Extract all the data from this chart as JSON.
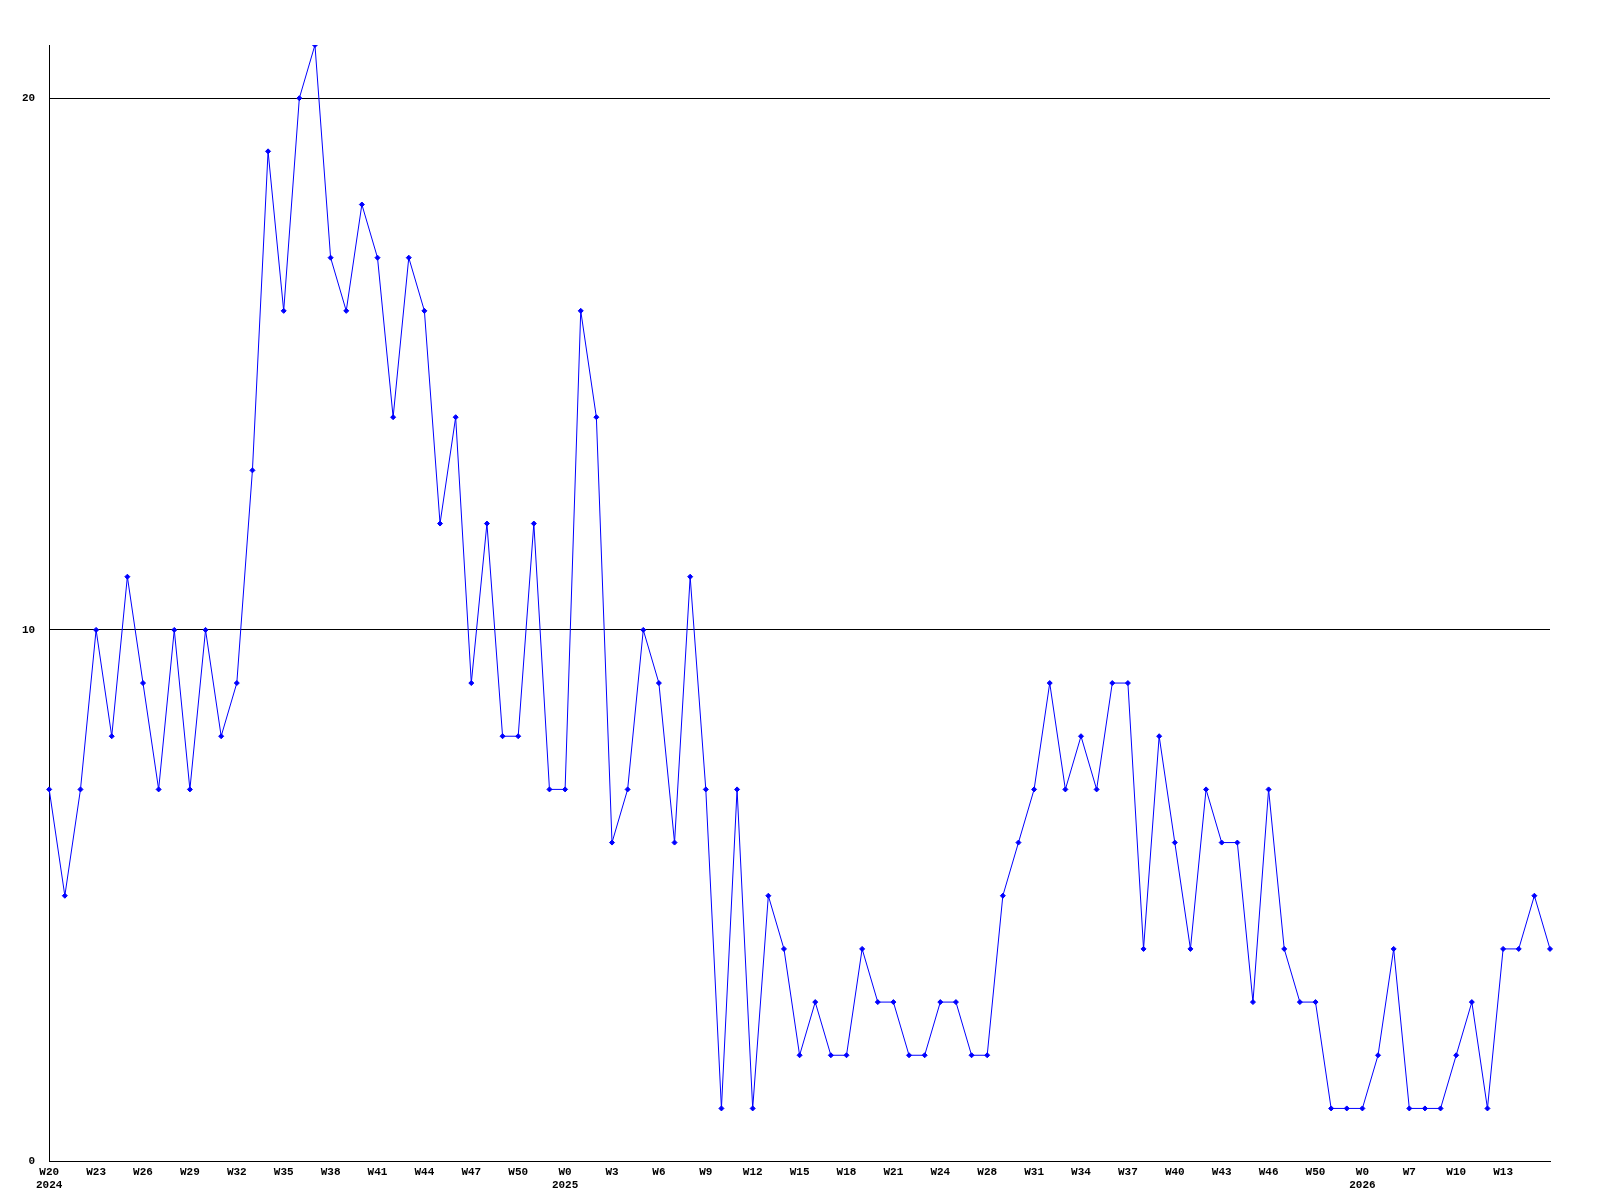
{
  "chart_data": {
    "type": "line",
    "categories": [
      "W20\n2024",
      null,
      null,
      "W23",
      null,
      null,
      "W26",
      null,
      null,
      "W29",
      null,
      null,
      "W32",
      null,
      null,
      "W35",
      null,
      null,
      "W38",
      null,
      null,
      "W41",
      null,
      null,
      "W44",
      null,
      null,
      "W47",
      null,
      null,
      "W50",
      null,
      null,
      "W0\n2025",
      null,
      null,
      "W3",
      null,
      null,
      "W6",
      null,
      null,
      "W9",
      null,
      null,
      "W12",
      null,
      null,
      "W15",
      null,
      null,
      "W18",
      null,
      null,
      "W21",
      null,
      null,
      "W24",
      null,
      null,
      "W28",
      null,
      null,
      "W31",
      null,
      null,
      "W34",
      null,
      null,
      "W37",
      null,
      null,
      "W40",
      null,
      null,
      "W43",
      null,
      null,
      "W46",
      null,
      null,
      "W50",
      null,
      null,
      "W0\n2026",
      null,
      null,
      "W7",
      null,
      null,
      "W10",
      null,
      null,
      "W13",
      null,
      null,
      null
    ],
    "values": [
      7,
      5,
      7,
      10,
      8,
      11,
      9,
      7,
      10,
      7,
      10,
      8,
      9,
      13,
      19,
      16,
      20,
      21,
      17,
      16,
      18,
      17,
      14,
      17,
      16,
      12,
      14,
      9,
      12,
      8,
      8,
      12,
      7,
      7,
      16,
      14,
      6,
      7,
      10,
      9,
      6,
      11,
      7,
      1,
      7,
      1,
      5,
      4,
      2,
      3,
      2,
      2,
      4,
      3,
      3,
      2,
      2,
      3,
      3,
      2,
      2,
      5,
      6,
      7,
      9,
      7,
      8,
      7,
      9,
      9,
      4,
      8,
      6,
      4,
      7,
      6,
      6,
      3,
      7,
      4,
      3,
      3,
      1,
      1,
      1,
      2,
      4,
      1,
      1,
      1,
      2,
      3,
      1,
      4,
      4,
      5,
      4
    ],
    "color": "#0000ff",
    "marker": "diamond",
    "ylim": [
      0,
      21
    ],
    "yticks": [
      0,
      10,
      20
    ],
    "grid": "y",
    "legend": false
  }
}
